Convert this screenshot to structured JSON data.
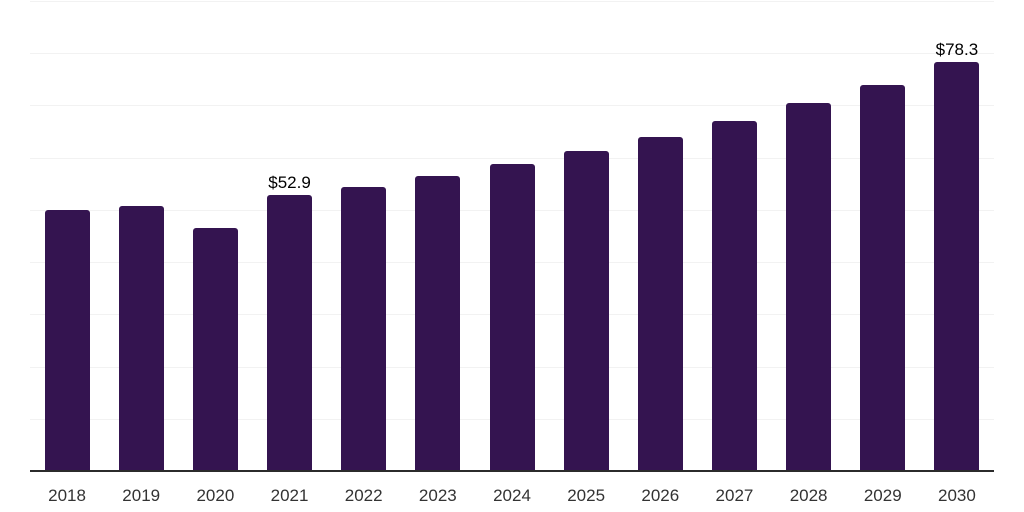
{
  "chart_data": {
    "type": "bar",
    "title": "",
    "xlabel": "",
    "ylabel": "",
    "categories": [
      "2018",
      "2019",
      "2020",
      "2021",
      "2022",
      "2023",
      "2024",
      "2025",
      "2026",
      "2027",
      "2028",
      "2029",
      "2030"
    ],
    "values": [
      49.9,
      50.7,
      46.5,
      52.9,
      54.4,
      56.4,
      58.8,
      61.2,
      63.9,
      67.0,
      70.4,
      74.0,
      78.3
    ],
    "value_labels": [
      "",
      "",
      "",
      "$52.9",
      "",
      "",
      "",
      "",
      "",
      "",
      "",
      "",
      "$78.3"
    ],
    "currency_prefix": "$",
    "ylim": [
      0,
      90
    ],
    "grid_step": 10,
    "grid": "horizontal-only",
    "legend": "none",
    "colors": {
      "bar": "#341450",
      "axis_line": "#2b2b2b",
      "gridline": "#f2f2f2",
      "tick_label": "#333333",
      "value_label": "#000000",
      "background": "#ffffff"
    }
  }
}
